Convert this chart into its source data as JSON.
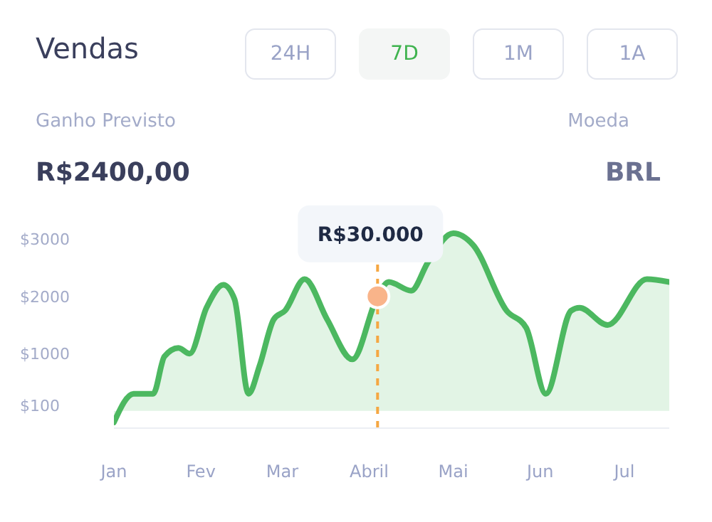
{
  "chart_data": {
    "type": "area",
    "title": "Vendas",
    "annotations": [
      "24H",
      "7D",
      "1M",
      "1A",
      "Ganho Previsto",
      "R$2400,00",
      "Moeda",
      "BRL",
      {
        "text": "R$30.000",
        "x": "--04-04",
        "y": 2000
      }
    ],
    "xlim": [
      "--01-01",
      "--07-17"
    ],
    "xticks": [
      {
        "value": "--01-01",
        "label": "Jan"
      },
      {
        "value": "--02-01",
        "label": "Fev"
      },
      {
        "value": "--03-01",
        "label": "Mar"
      },
      {
        "value": "--04-01",
        "label": "Abril"
      },
      {
        "value": "--05-01",
        "label": "Mai"
      },
      {
        "value": "--06-01",
        "label": "Jun"
      },
      {
        "value": "--07-01",
        "label": "Jul"
      }
    ],
    "ylim": [
      -300,
      3300
    ],
    "yticks": [
      {
        "value": 100,
        "label": "$100"
      },
      {
        "value": 1000,
        "label": "$1000"
      },
      {
        "value": 2000,
        "label": "$2000"
      },
      {
        "value": 3000,
        "label": "$3000"
      }
    ],
    "grid": false,
    "legend": false,
    "marker": "none",
    "ref_lines": [
      {
        "axis": "x",
        "value": "--04-04",
        "color": "#f5a742",
        "line_style": "dashed"
      }
    ],
    "series": [
      {
        "color": "#4cb860",
        "x": [
          "--01-01",
          "--01-08",
          "--01-15",
          "--01-19",
          "--01-24",
          "--01-28",
          "--02-03",
          "--02-09",
          "--02-13",
          "--02-18",
          "--02-22",
          "--02-27",
          "--03-02",
          "--03-09",
          "--03-17",
          "--03-26",
          "--04-04",
          "--04-08",
          "--04-16",
          "--04-22",
          "--05-01",
          "--05-08",
          "--05-20",
          "--05-27",
          "--06-03",
          "--06-12",
          "--06-15",
          "--06-25",
          "--07-09",
          "--07-17"
        ],
        "values": [
          -200,
          300,
          300,
          950,
          1100,
          1000,
          1800,
          2200,
          1950,
          300,
          800,
          1600,
          1750,
          2300,
          1600,
          900,
          2000,
          2250,
          2100,
          2600,
          3100,
          2900,
          1750,
          1450,
          300,
          1750,
          1800,
          1500,
          2300,
          2250
        ]
      },
      {
        "type": "scatter",
        "marker": "circle",
        "color": "#f9b48a",
        "x": [
          "--04-04"
        ],
        "values": [
          2000
        ]
      }
    ]
  }
}
